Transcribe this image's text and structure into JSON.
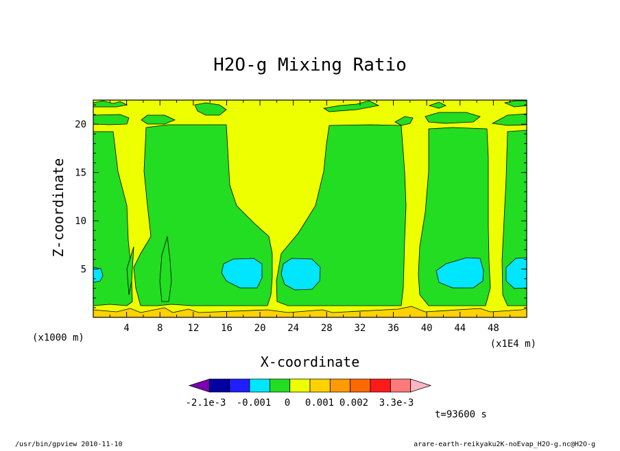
{
  "chart_data": {
    "type": "heatmap",
    "title": "H2O-g Mixing Ratio",
    "xlabel": "X-coordinate",
    "ylabel": "Z-coordinate",
    "x_unit": "(x1000 m)",
    "x_scale_note": "(x1E4 m)",
    "xlim": [
      0,
      52
    ],
    "ylim": [
      0,
      22.5
    ],
    "x_ticks": [
      4,
      8,
      12,
      16,
      20,
      24,
      28,
      32,
      36,
      40,
      44,
      48
    ],
    "y_ticks": [
      5,
      10,
      15,
      20
    ],
    "colorbar": {
      "colors": [
        "#7a00b0",
        "#0000a0",
        "#1e1eff",
        "#00e6ff",
        "#22dd22",
        "#eeff00",
        "#ffd200",
        "#ff9a00",
        "#ff6a00",
        "#ff1a1a",
        "#ff7a7a",
        "#ffb6c1"
      ],
      "tick_labels": [
        "-2.1e-3",
        "-0.001",
        "0",
        "0.001",
        "0.002",
        "3.3e-3"
      ]
    },
    "fields": {
      "background_color": "#eeff00",
      "positive_color": "#ffd200",
      "negative_color": "#22dd22",
      "minimum_color": "#00e6ff"
    }
  },
  "time_label": "t=93600 s",
  "footer": {
    "left": "/usr/bin/gpview   2010-11-10",
    "right": "arare-earth-reikyaku2K-noEvap_H2O-g.nc@H2O-g"
  }
}
